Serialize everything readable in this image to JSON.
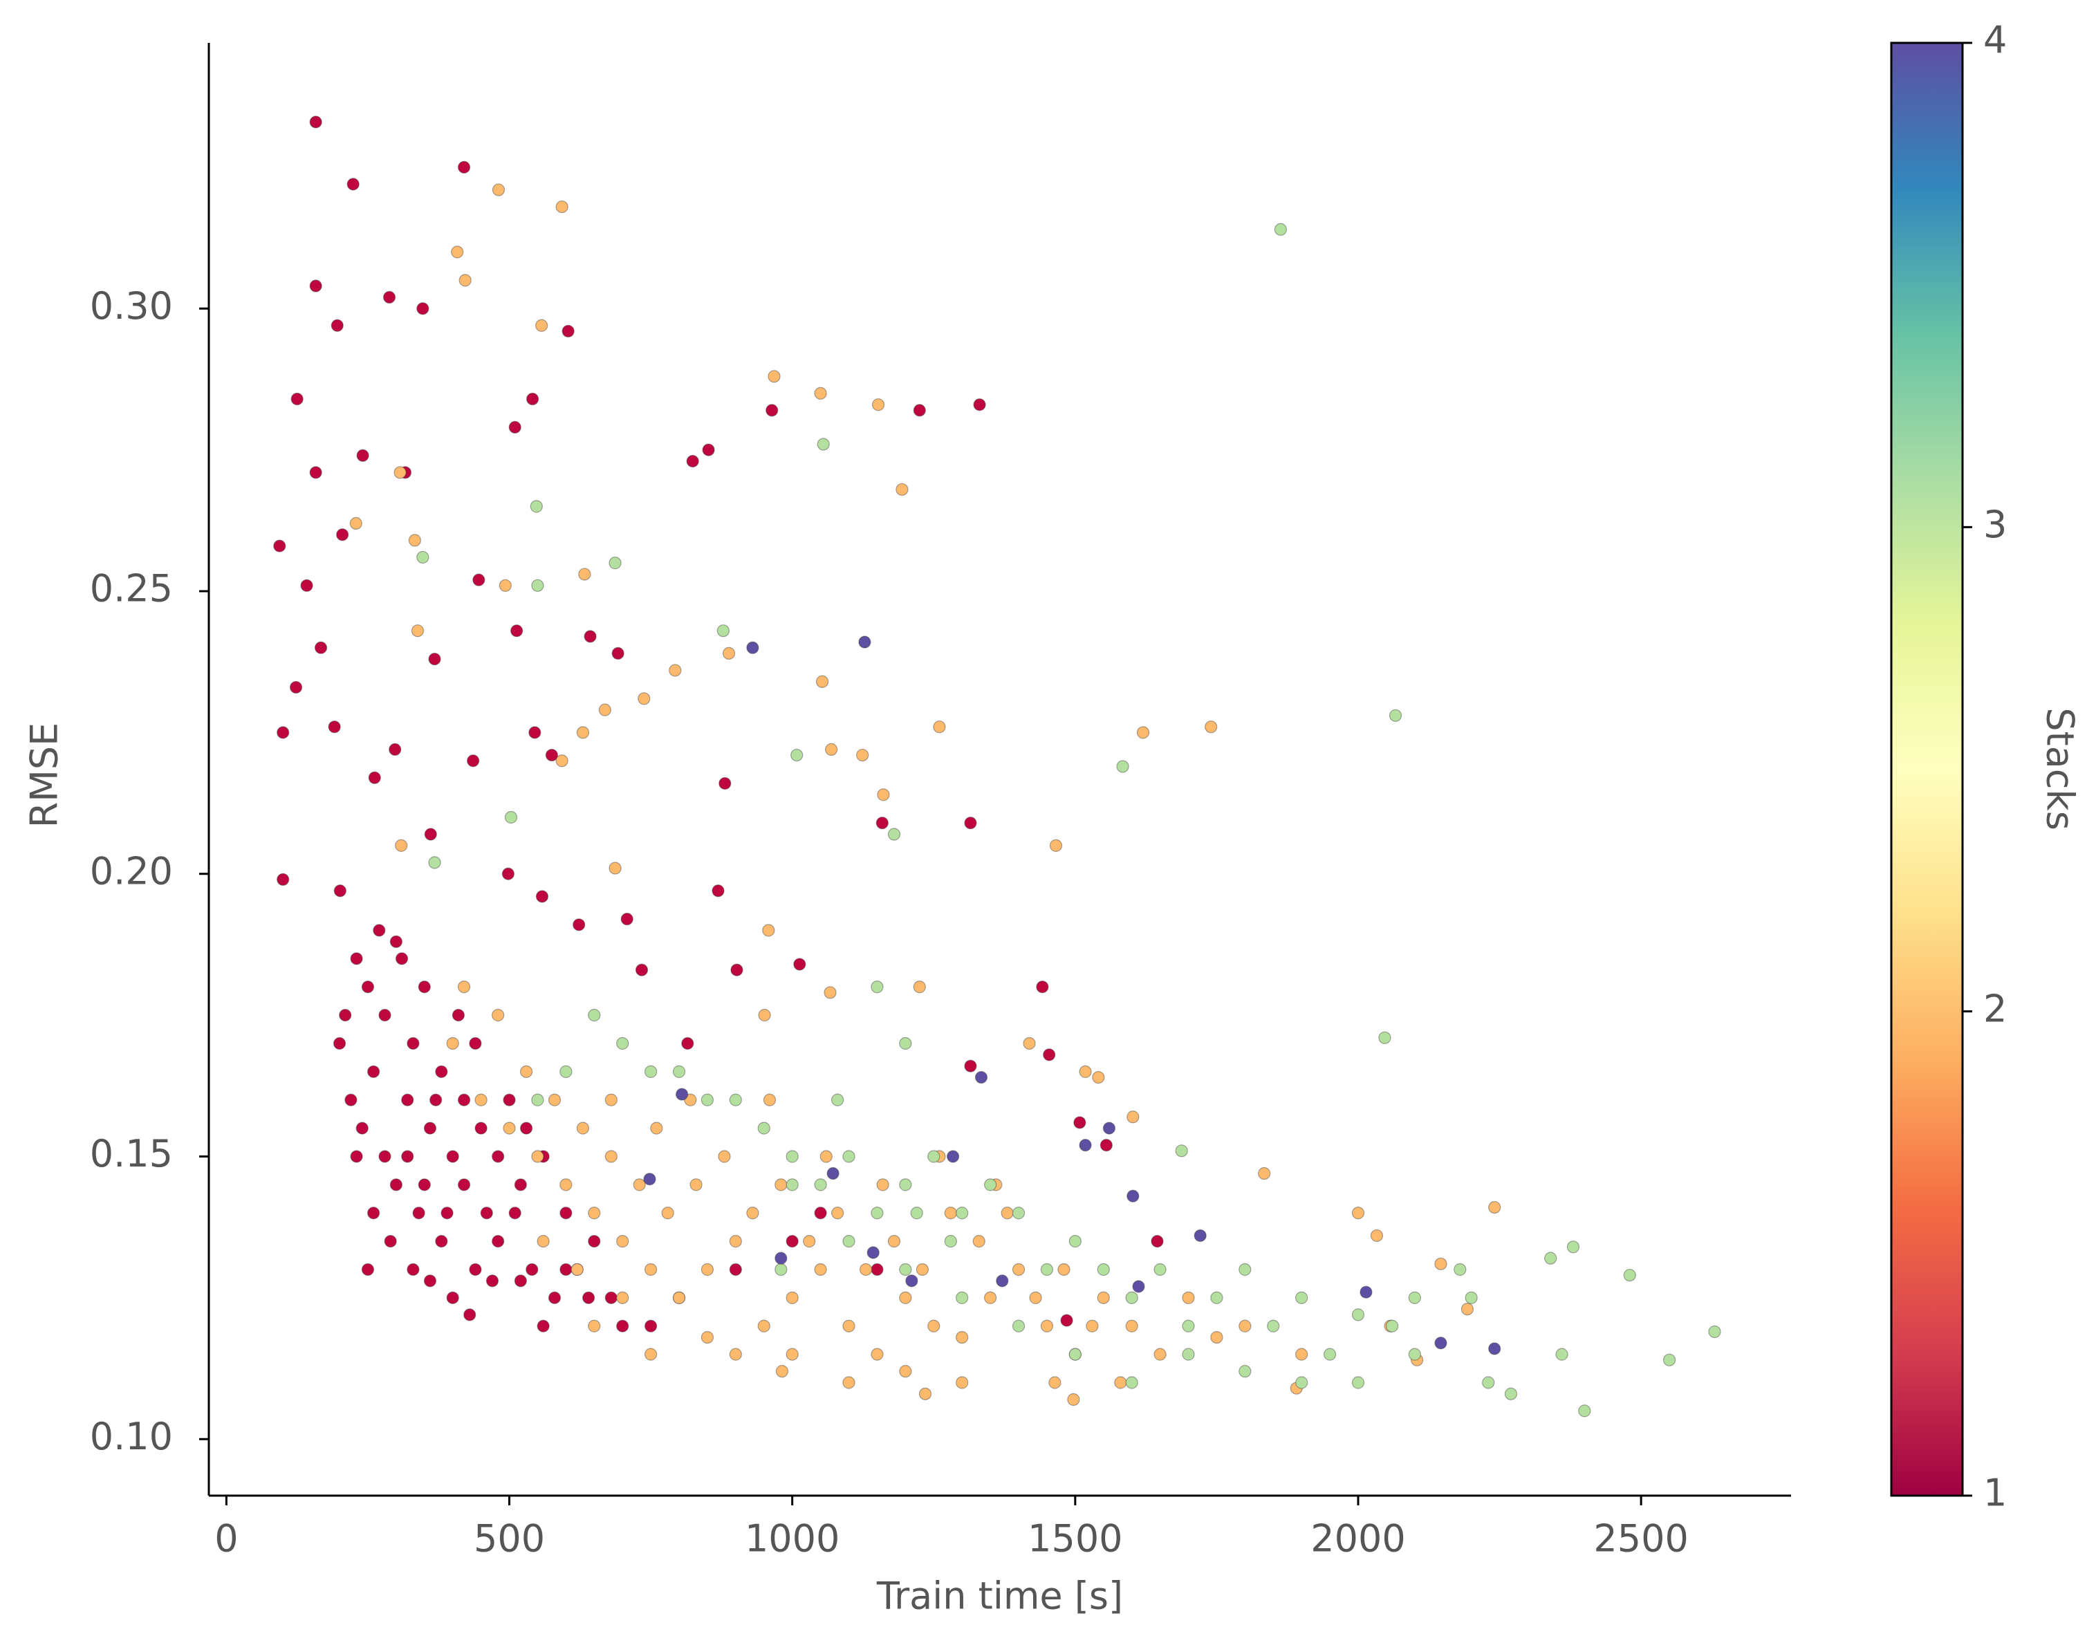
{
  "chart_data": {
    "type": "scatter",
    "x_label": "Train time [s]",
    "y_label": "RMSE",
    "xlim": [
      -31,
      2765
    ],
    "ylim": [
      0.09,
      0.347
    ],
    "xticks": [
      0,
      500,
      1000,
      1500,
      2000,
      2500
    ],
    "yticks": [
      {
        "value": 0.1,
        "label": "0.10"
      },
      0.15,
      {
        "value": 0.2,
        "label": "0.20"
      },
      0.25,
      {
        "value": 0.3,
        "label": "0.30"
      }
    ],
    "colorbar": {
      "label": "Stacks",
      "lim": [
        1,
        4
      ],
      "ticks": [
        1,
        2,
        3,
        4
      ],
      "colors": [
        "#9e0142",
        "#d53e4f",
        "#f46d43",
        "#fdae61",
        "#fee08b",
        "#ffffbf",
        "#e6f598",
        "#abdda4",
        "#66c2a5",
        "#3288bd",
        "#5e4fa2"
      ]
    },
    "series": [
      {
        "stacks": 1,
        "color": "#c0063f",
        "x": [
          158,
          224,
          420,
          158,
          288,
          196,
          347,
          604,
          316,
          125,
          158,
          241,
          541,
          510,
          852,
          824,
          964,
          1225,
          1331,
          94,
          142,
          205,
          446,
          513,
          643,
          692,
          368,
          123,
          167,
          100,
          191,
          298,
          545,
          575,
          436,
          262,
          881,
          1315,
          1159,
          100,
          201,
          361,
          498,
          558,
          623,
          708,
          869,
          734,
          1013,
          902,
          1442,
          815,
          1454,
          1315,
          1508,
          1555,
          1645,
          1485,
          200,
          220,
          240,
          260,
          280,
          300,
          320,
          340,
          360,
          380,
          400,
          420,
          440,
          460,
          480,
          500,
          520,
          540,
          560,
          580,
          600,
          620,
          650,
          680,
          700,
          250,
          280,
          310,
          330,
          350,
          380,
          410,
          440,
          210,
          230,
          270,
          300,
          260,
          290,
          330,
          360,
          400,
          430,
          470,
          520,
          560,
          600,
          640,
          750,
          800,
          900,
          1000,
          1050,
          1150,
          320,
          350,
          370,
          390,
          420,
          450,
          230,
          250,
          480,
          510,
          530
        ],
        "values": [
          0.333,
          0.322,
          0.325,
          0.304,
          0.302,
          0.297,
          0.3,
          0.296,
          0.271,
          0.284,
          0.271,
          0.274,
          0.284,
          0.279,
          0.275,
          0.273,
          0.282,
          0.282,
          0.283,
          0.258,
          0.251,
          0.26,
          0.252,
          0.243,
          0.242,
          0.239,
          0.238,
          0.233,
          0.24,
          0.225,
          0.226,
          0.222,
          0.225,
          0.221,
          0.22,
          0.217,
          0.216,
          0.209,
          0.209,
          0.199,
          0.197,
          0.207,
          0.2,
          0.196,
          0.191,
          0.192,
          0.197,
          0.183,
          0.184,
          0.183,
          0.18,
          0.17,
          0.168,
          0.166,
          0.156,
          0.152,
          0.135,
          0.121,
          0.17,
          0.16,
          0.155,
          0.165,
          0.15,
          0.145,
          0.16,
          0.14,
          0.155,
          0.135,
          0.15,
          0.145,
          0.13,
          0.14,
          0.135,
          0.16,
          0.145,
          0.13,
          0.15,
          0.125,
          0.14,
          0.13,
          0.135,
          0.125,
          0.12,
          0.18,
          0.175,
          0.185,
          0.17,
          0.18,
          0.165,
          0.175,
          0.17,
          0.175,
          0.185,
          0.19,
          0.188,
          0.14,
          0.135,
          0.13,
          0.128,
          0.125,
          0.122,
          0.128,
          0.128,
          0.12,
          0.13,
          0.125,
          0.12,
          0.125,
          0.13,
          0.135,
          0.14,
          0.13,
          0.15,
          0.145,
          0.16,
          0.14,
          0.16,
          0.155,
          0.15,
          0.13,
          0.15,
          0.14,
          0.155
        ]
      },
      {
        "stacks": 2,
        "color": "#fdb96c",
        "x": [
          481,
          593,
          408,
          422,
          557,
          968,
          1050,
          1152,
          1194,
          307,
          333,
          229,
          493,
          633,
          338,
          888,
          793,
          1053,
          738,
          669,
          1260,
          1620,
          1740,
          1069,
          1124,
          1161,
          1466,
          593,
          630,
          309,
          687,
          958,
          1067,
          1225,
          951,
          1419,
          1518,
          1541,
          1602,
          1834,
          2000,
          2033,
          2241,
          2146,
          2193,
          2057,
          1891,
          2104,
          1464,
          1497,
          1235,
          982,
          400,
          450,
          500,
          550,
          600,
          650,
          700,
          750,
          800,
          850,
          900,
          950,
          1000,
          1050,
          1100,
          1150,
          1200,
          1250,
          1300,
          1350,
          1400,
          1450,
          1500,
          1550,
          1600,
          420,
          480,
          530,
          580,
          630,
          680,
          730,
          780,
          830,
          880,
          930,
          980,
          1030,
          1080,
          1130,
          1180,
          1230,
          1280,
          1330,
          1380,
          1430,
          1480,
          1530,
          1580,
          650,
          700,
          750,
          850,
          900,
          1000,
          1100,
          1200,
          1300,
          560,
          620,
          680,
          760,
          820,
          960,
          1060,
          1160,
          1260,
          1360,
          1700,
          1800,
          1900,
          1650,
          1750
        ],
        "values": [
          0.321,
          0.318,
          0.31,
          0.305,
          0.297,
          0.288,
          0.285,
          0.283,
          0.268,
          0.271,
          0.259,
          0.262,
          0.251,
          0.253,
          0.243,
          0.239,
          0.236,
          0.234,
          0.231,
          0.229,
          0.226,
          0.225,
          0.226,
          0.222,
          0.221,
          0.214,
          0.205,
          0.22,
          0.225,
          0.205,
          0.201,
          0.19,
          0.179,
          0.18,
          0.175,
          0.17,
          0.165,
          0.164,
          0.157,
          0.147,
          0.14,
          0.136,
          0.141,
          0.131,
          0.123,
          0.12,
          0.109,
          0.114,
          0.11,
          0.107,
          0.108,
          0.112,
          0.17,
          0.16,
          0.155,
          0.15,
          0.145,
          0.14,
          0.135,
          0.13,
          0.125,
          0.13,
          0.135,
          0.12,
          0.125,
          0.13,
          0.12,
          0.115,
          0.125,
          0.12,
          0.118,
          0.125,
          0.13,
          0.12,
          0.115,
          0.125,
          0.12,
          0.18,
          0.175,
          0.165,
          0.16,
          0.155,
          0.15,
          0.145,
          0.14,
          0.145,
          0.15,
          0.14,
          0.145,
          0.135,
          0.14,
          0.13,
          0.135,
          0.13,
          0.14,
          0.135,
          0.14,
          0.125,
          0.13,
          0.12,
          0.11,
          0.12,
          0.125,
          0.115,
          0.118,
          0.115,
          0.115,
          0.11,
          0.112,
          0.11,
          0.135,
          0.13,
          0.16,
          0.155,
          0.16,
          0.16,
          0.15,
          0.145,
          0.15,
          0.145,
          0.125,
          0.12,
          0.115,
          0.115,
          0.118
        ]
      },
      {
        "stacks": 3,
        "color": "#b4e09f",
        "x": [
          1863,
          2066,
          1055,
          548,
          347,
          550,
          687,
          878,
          1008,
          1584,
          1180,
          503,
          368,
          2047,
          1688,
          2200,
          2270,
          2400,
          2480,
          2550,
          2630,
          2340,
          2380,
          2360,
          2230,
          2100,
          2060,
          2000,
          1950,
          1900,
          1850,
          1800,
          1750,
          1700,
          1650,
          1600,
          1550,
          1500,
          1450,
          1400,
          1350,
          1300,
          1250,
          1200,
          1150,
          1100,
          1050,
          1000,
          950,
          900,
          850,
          800,
          750,
          700,
          650,
          600,
          550,
          1100,
          1200,
          1300,
          1400,
          1500,
          1600,
          1700,
          1800,
          1900,
          2000,
          2100,
          2180,
          1150,
          1200,
          1000,
          1080,
          1220,
          1280,
          980
        ],
        "values": [
          0.314,
          0.228,
          0.276,
          0.265,
          0.256,
          0.251,
          0.255,
          0.243,
          0.221,
          0.219,
          0.207,
          0.21,
          0.202,
          0.171,
          0.151,
          0.125,
          0.108,
          0.105,
          0.129,
          0.114,
          0.119,
          0.132,
          0.134,
          0.115,
          0.11,
          0.115,
          0.12,
          0.11,
          0.115,
          0.125,
          0.12,
          0.13,
          0.125,
          0.12,
          0.13,
          0.125,
          0.13,
          0.135,
          0.13,
          0.14,
          0.145,
          0.14,
          0.15,
          0.145,
          0.14,
          0.15,
          0.145,
          0.15,
          0.155,
          0.16,
          0.16,
          0.165,
          0.165,
          0.17,
          0.175,
          0.165,
          0.16,
          0.135,
          0.13,
          0.125,
          0.12,
          0.115,
          0.11,
          0.115,
          0.112,
          0.11,
          0.122,
          0.125,
          0.13,
          0.18,
          0.17,
          0.145,
          0.16,
          0.14,
          0.135,
          0.13
        ]
      },
      {
        "stacks": 4,
        "color": "#5e4fa2",
        "x": [
          930,
          1128,
          1334,
          1560,
          1602,
          1721,
          1518,
          1284,
          1211,
          1612,
          2014,
          2146,
          2241,
          1143,
          1371,
          980,
          805,
          1072,
          748
        ],
        "values": [
          0.24,
          0.241,
          0.164,
          0.155,
          0.143,
          0.136,
          0.152,
          0.15,
          0.128,
          0.127,
          0.126,
          0.117,
          0.116,
          0.133,
          0.128,
          0.132,
          0.161,
          0.147,
          0.146
        ]
      }
    ]
  }
}
